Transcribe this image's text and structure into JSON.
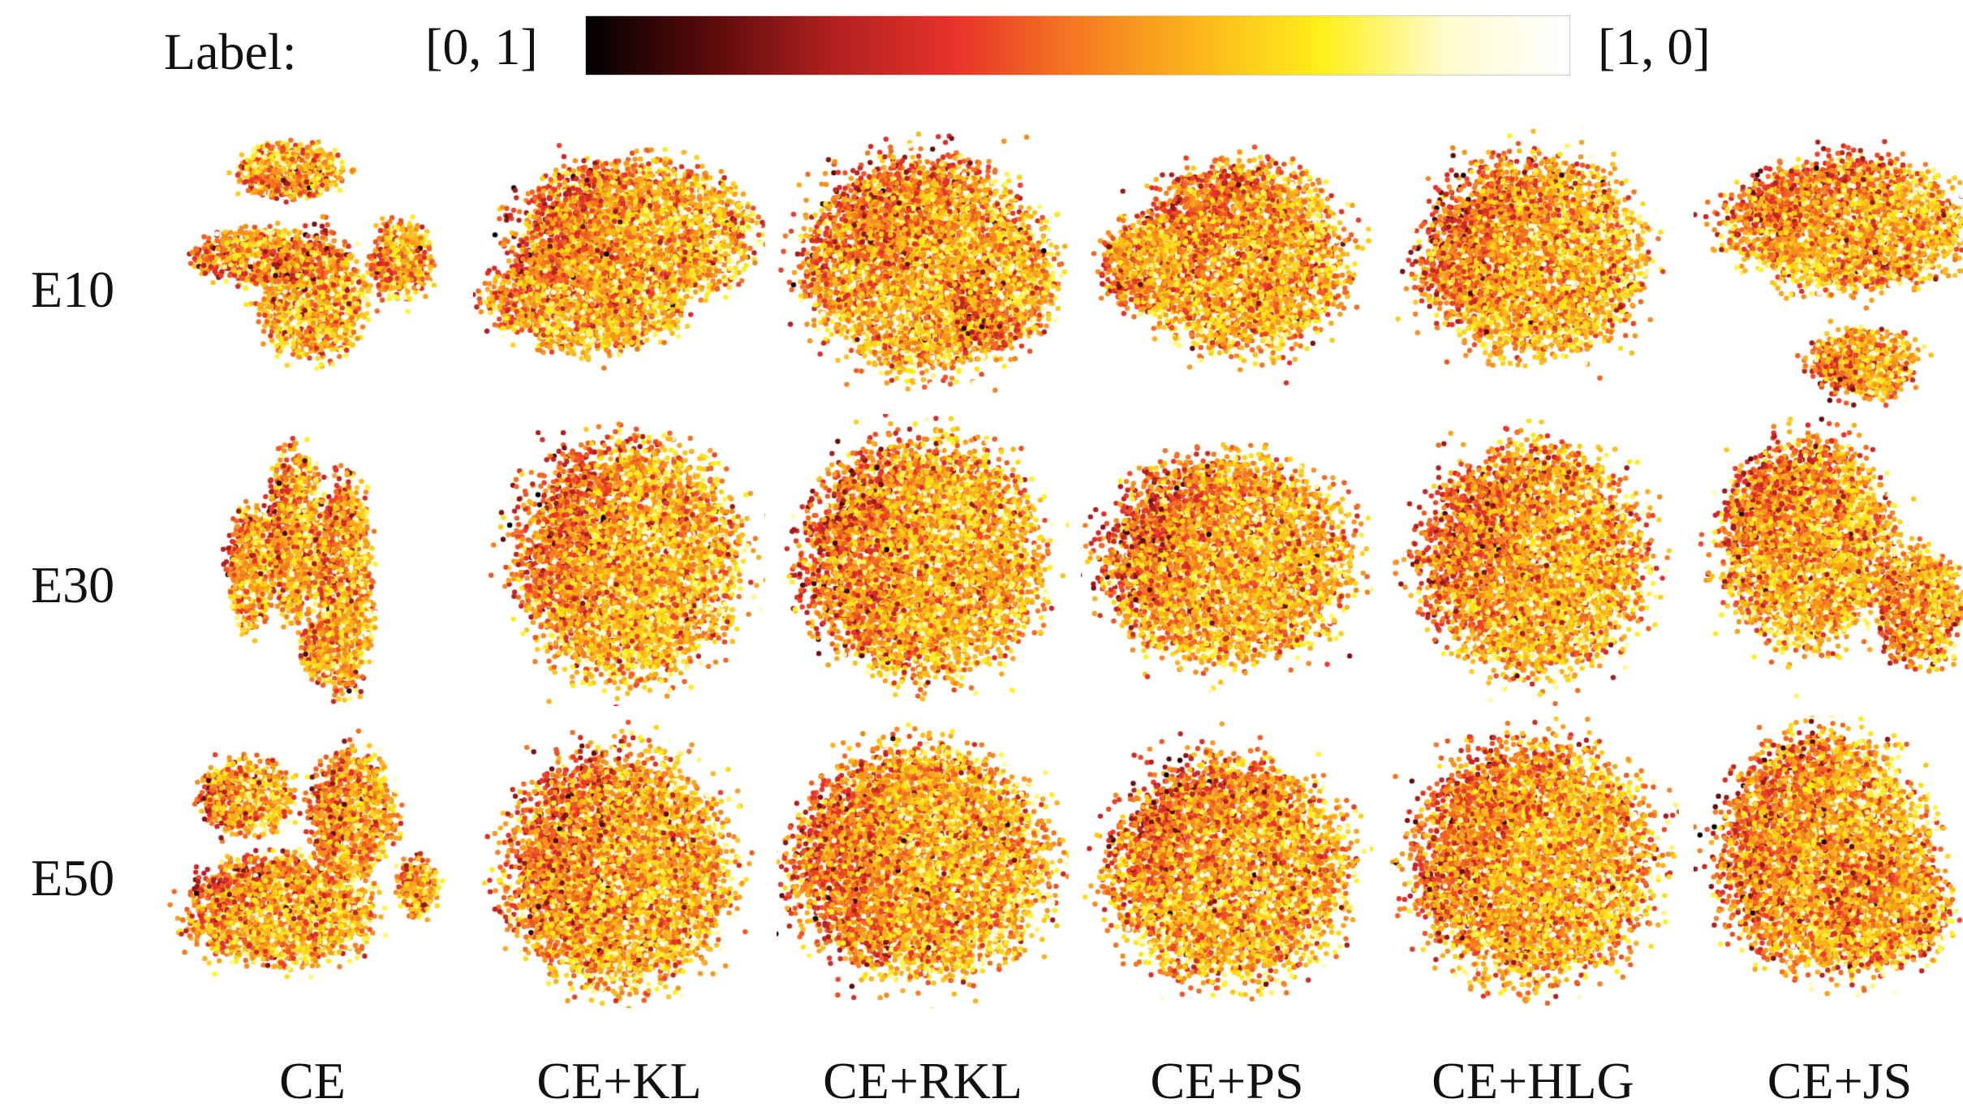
{
  "chart_data": {
    "type": "scatter",
    "description_of_layout": "grid of embedding scatter plots; rows are epochs, columns are loss functions; point color encodes label",
    "colorbar": {
      "title": "Label:",
      "min_label": "[0, 1]",
      "max_label": "[1, 0]",
      "colormap": [
        "#000000",
        "#5a0a0a",
        "#b02020",
        "#e8322a",
        "#f47a20",
        "#fbb81a",
        "#fff01a",
        "#fffbd0",
        "#ffffff"
      ]
    },
    "rows": [
      "E10",
      "E30",
      "E50"
    ],
    "columns": [
      "CE",
      "CE+KL",
      "CE+RKL",
      "CE+PS",
      "CE+HLG",
      "CE+JS"
    ],
    "grid": false,
    "axes_visible": false
  }
}
